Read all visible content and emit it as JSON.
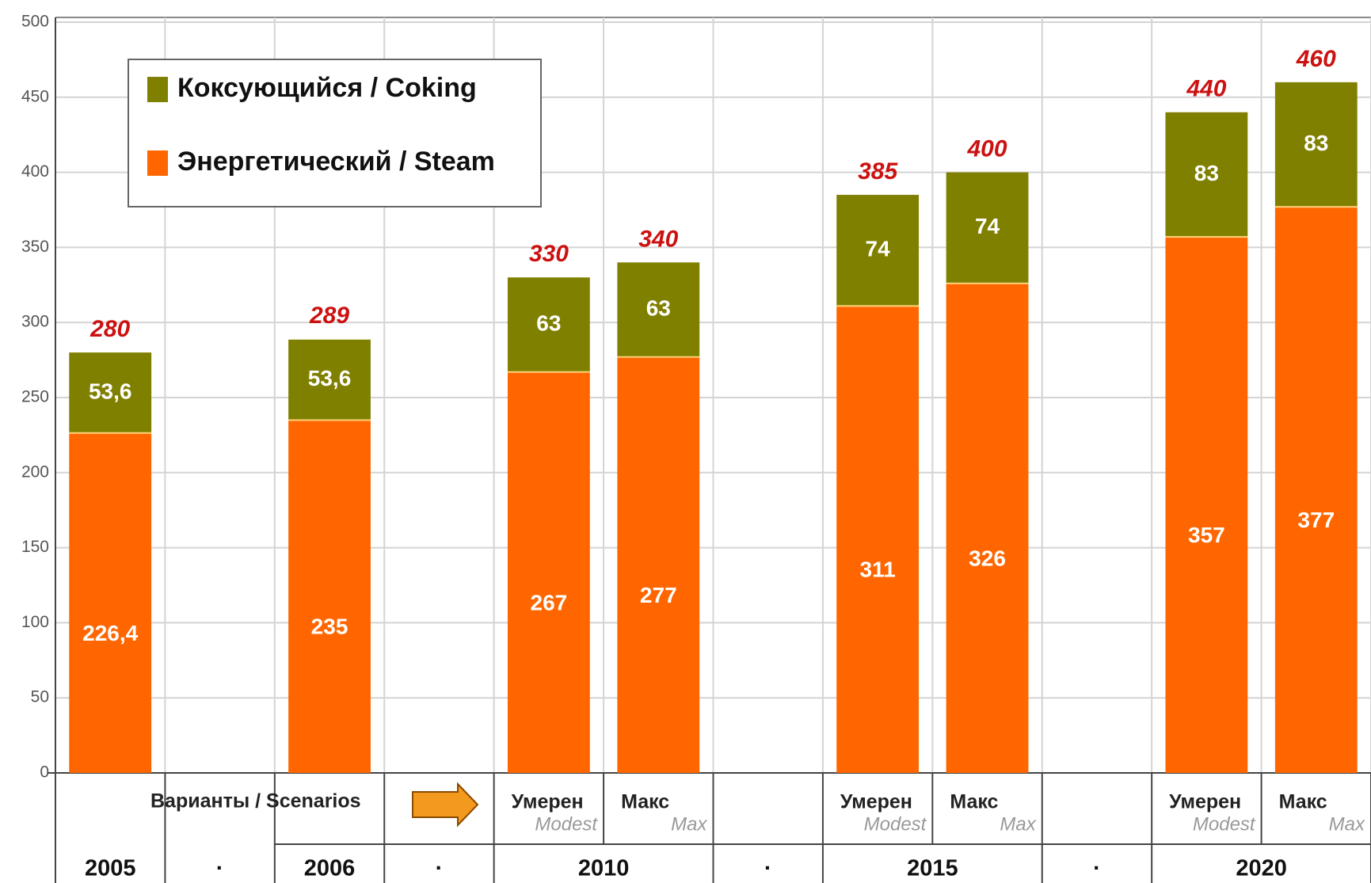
{
  "chart_data": {
    "type": "stacked_bar",
    "categories": [
      null,
      null,
      null,
      null,
      "Умерен",
      "Макс",
      null,
      "Умерен",
      "Макс",
      null,
      "Умерен",
      "Макс"
    ],
    "categories_en": [
      null,
      null,
      null,
      null,
      "Modest",
      "Max",
      null,
      "Modest",
      "Max",
      null,
      "Modest",
      "Max"
    ],
    "groups": [
      {
        "label": "2005",
        "span": 1
      },
      {
        "label": "·",
        "span": 1
      },
      {
        "label": "2006",
        "span": 1
      },
      {
        "label": "·",
        "span": 1
      },
      {
        "label": "2010",
        "span": 2
      },
      {
        "label": "·",
        "span": 1
      },
      {
        "label": "2015",
        "span": 2
      },
      {
        "label": "·",
        "span": 1
      },
      {
        "label": "2020",
        "span": 2
      }
    ],
    "scenarios_label": "Варианты / Scenarios",
    "series": [
      {
        "name": "Энергетический / Steam",
        "color": "#ff6600",
        "values": [
          226.4,
          null,
          235,
          null,
          267,
          277,
          null,
          311,
          326,
          null,
          357,
          377
        ],
        "value_labels": [
          "226,4",
          null,
          "235",
          null,
          "267",
          "277",
          null,
          "311",
          "326",
          null,
          "357",
          "377"
        ]
      },
      {
        "name": "Коксующийся / Coking",
        "color": "#808000",
        "values": [
          53.6,
          null,
          53.6,
          null,
          63,
          63,
          null,
          74,
          74,
          null,
          83,
          83
        ],
        "value_labels": [
          "53,6",
          null,
          "53,6",
          null,
          "63",
          "63",
          null,
          "74",
          "74",
          null,
          "83",
          "83"
        ]
      }
    ],
    "totals": [
      280,
      null,
      289,
      null,
      330,
      340,
      null,
      385,
      400,
      null,
      440,
      460
    ],
    "ylim": [
      0,
      500
    ],
    "yticks": [
      0,
      50,
      100,
      150,
      200,
      250,
      300,
      350,
      400,
      450,
      500
    ],
    "grid": true,
    "legend": "upper left"
  }
}
